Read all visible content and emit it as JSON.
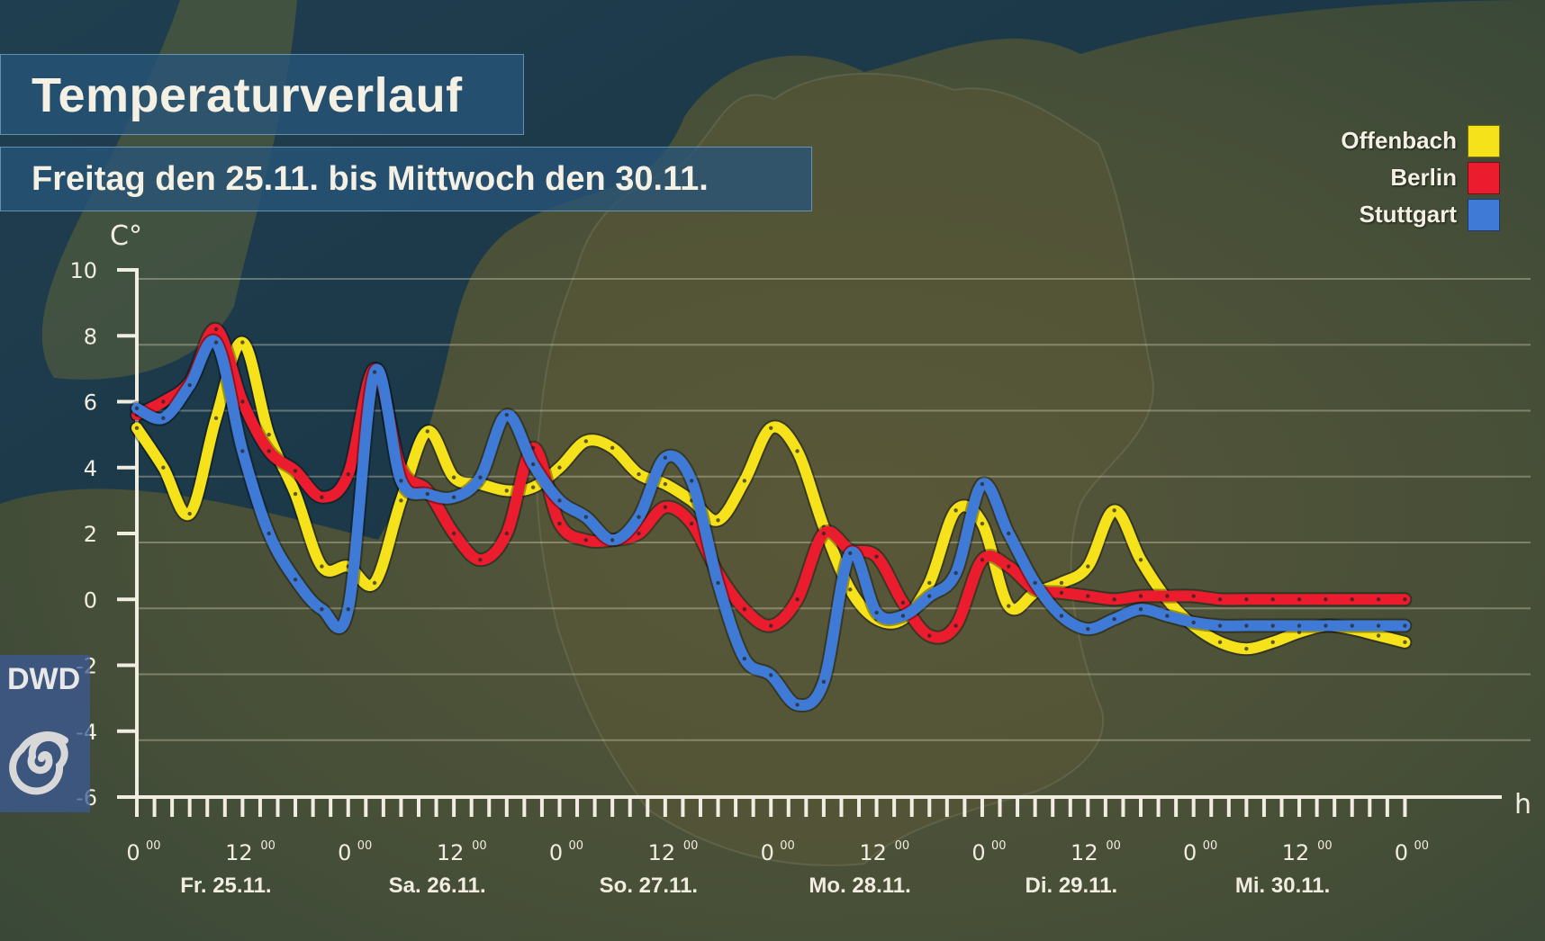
{
  "title": "Temperaturverlauf",
  "subtitle": "Freitag den 25.11. bis Mittwoch den 30.11.",
  "logo_text": "DWD",
  "colors": {
    "Offenbach": "#f5e21a",
    "Berlin": "#ea1c2d",
    "Stuttgart": "#3f7bd6"
  },
  "chart_data": {
    "type": "line",
    "ylabel": "C°",
    "xlabel": "h",
    "ylim": [
      -6,
      10
    ],
    "yticks": [
      10,
      8,
      6,
      4,
      2,
      0,
      -2,
      -4,
      -6
    ],
    "xlim": [
      0,
      146
    ],
    "x_tick_labels": [
      {
        "x": 0,
        "label": "0"
      },
      {
        "x": 12,
        "label": "12"
      },
      {
        "x": 24,
        "label": "0"
      },
      {
        "x": 36,
        "label": "12"
      },
      {
        "x": 48,
        "label": "0"
      },
      {
        "x": 60,
        "label": "12"
      },
      {
        "x": 72,
        "label": "0"
      },
      {
        "x": 84,
        "label": "12"
      },
      {
        "x": 96,
        "label": "0"
      },
      {
        "x": 108,
        "label": "12"
      },
      {
        "x": 120,
        "label": "0"
      },
      {
        "x": 132,
        "label": "12"
      },
      {
        "x": 144,
        "label": "0"
      }
    ],
    "tick_superscript": "00",
    "day_labels": [
      {
        "x": 5,
        "label": "Fr. 25.11."
      },
      {
        "x": 29,
        "label": "Sa. 26.11."
      },
      {
        "x": 53,
        "label": "So. 27.11."
      },
      {
        "x": 77,
        "label": "Mo. 28.11."
      },
      {
        "x": 101,
        "label": "Di. 29.11."
      },
      {
        "x": 125,
        "label": "Mi. 30.11."
      }
    ],
    "legend": [
      "Offenbach",
      "Berlin",
      "Stuttgart"
    ],
    "series": [
      {
        "name": "Offenbach",
        "x": [
          0,
          3,
          6,
          9,
          12,
          15,
          18,
          21,
          24,
          27,
          30,
          33,
          36,
          39,
          42,
          45,
          48,
          51,
          54,
          57,
          60,
          63,
          66,
          69,
          72,
          75,
          78,
          81,
          84,
          87,
          90,
          93,
          96,
          99,
          102,
          105,
          108,
          111,
          114,
          117,
          120,
          123,
          126,
          129,
          132,
          135,
          138,
          141,
          144
        ],
        "y": [
          5.2,
          4.0,
          2.6,
          5.5,
          7.8,
          5.0,
          3.2,
          1.0,
          1.0,
          0.5,
          3.0,
          5.1,
          3.7,
          3.5,
          3.3,
          3.4,
          4.0,
          4.8,
          4.6,
          3.8,
          3.5,
          3.0,
          2.4,
          3.6,
          5.2,
          4.5,
          2.2,
          0.3,
          -0.6,
          -0.6,
          0.5,
          2.7,
          2.3,
          -0.2,
          0.2,
          0.5,
          1.0,
          2.7,
          1.2,
          0.0,
          -0.8,
          -1.3,
          -1.5,
          -1.3,
          -1.0,
          -0.8,
          -0.9,
          -1.1,
          -1.3
        ]
      },
      {
        "name": "Berlin",
        "x": [
          0,
          3,
          6,
          9,
          12,
          15,
          18,
          21,
          24,
          27,
          30,
          33,
          36,
          39,
          42,
          45,
          48,
          51,
          54,
          57,
          60,
          63,
          66,
          69,
          72,
          75,
          78,
          81,
          84,
          87,
          90,
          93,
          96,
          99,
          102,
          105,
          108,
          111,
          114,
          117,
          120,
          123,
          126,
          129,
          132,
          135,
          138,
          141,
          144
        ],
        "y": [
          5.6,
          6.0,
          6.6,
          8.2,
          6.0,
          4.5,
          3.9,
          3.1,
          3.8,
          7.0,
          4.0,
          3.3,
          2.0,
          1.2,
          2.0,
          4.6,
          2.3,
          1.8,
          1.8,
          2.0,
          2.8,
          2.3,
          0.8,
          -0.3,
          -0.8,
          0.0,
          2.0,
          1.5,
          1.3,
          -0.1,
          -1.1,
          -0.8,
          1.2,
          1.0,
          0.3,
          0.2,
          0.1,
          0.0,
          0.1,
          0.1,
          0.1,
          0.0,
          0.0,
          0.0,
          0.0,
          0.0,
          0.0,
          0.0,
          0.0
        ]
      },
      {
        "name": "Stuttgart",
        "x": [
          0,
          3,
          6,
          9,
          12,
          15,
          18,
          21,
          24,
          27,
          30,
          33,
          36,
          39,
          42,
          45,
          48,
          51,
          54,
          57,
          60,
          63,
          66,
          69,
          72,
          75,
          78,
          81,
          84,
          87,
          90,
          93,
          96,
          99,
          102,
          105,
          108,
          111,
          114,
          117,
          120,
          123,
          126,
          129,
          132,
          135,
          138,
          141,
          144
        ],
        "y": [
          5.8,
          5.5,
          6.5,
          7.8,
          4.5,
          2.0,
          0.6,
          -0.3,
          -0.3,
          6.9,
          3.6,
          3.2,
          3.1,
          3.7,
          5.6,
          4.1,
          3.0,
          2.5,
          1.8,
          2.5,
          4.3,
          3.6,
          0.5,
          -1.8,
          -2.3,
          -3.2,
          -2.5,
          1.4,
          -0.4,
          -0.5,
          0.1,
          0.8,
          3.5,
          2.0,
          0.5,
          -0.5,
          -0.9,
          -0.6,
          -0.3,
          -0.5,
          -0.7,
          -0.8,
          -0.8,
          -0.8,
          -0.8,
          -0.8,
          -0.8,
          -0.8,
          -0.8
        ]
      }
    ]
  }
}
